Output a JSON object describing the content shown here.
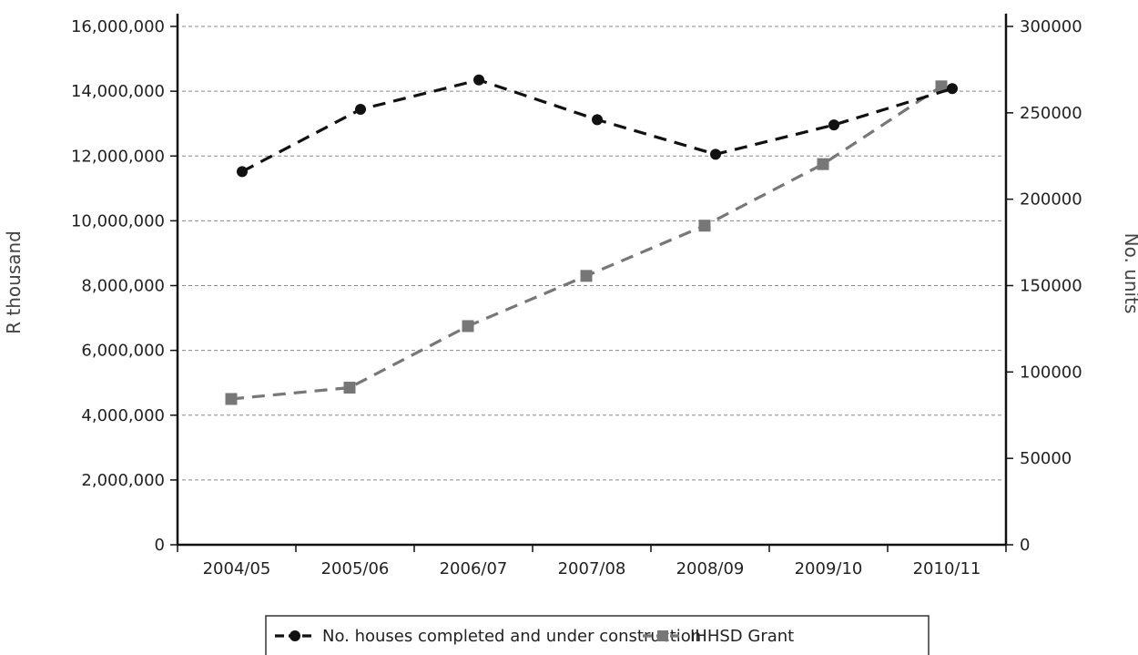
{
  "chart_data": {
    "type": "line",
    "categories": [
      "2004/05",
      "2005/06",
      "2006/07",
      "2007/08",
      "2008/09",
      "2009/10",
      "2010/11"
    ],
    "series": [
      {
        "name": "No. houses completed and under construction",
        "axis": "right",
        "values": [
          216000,
          252000,
          269000,
          246000,
          226000,
          243000,
          264000
        ],
        "color": "#111111",
        "marker": "circle",
        "line_style": "dashed"
      },
      {
        "name": "IHHSD Grant",
        "axis": "left",
        "values": [
          4500000,
          4850000,
          6750000,
          8300000,
          9850000,
          11750000,
          14150000
        ],
        "color": "#777777",
        "marker": "square",
        "line_style": "dashed"
      }
    ],
    "ylabel": "R thousand",
    "ylabel_right": "No. units",
    "ylim": [
      0,
      16000000
    ],
    "ylim_right": [
      0,
      300000
    ],
    "yticks": [
      "0",
      "2,000,000",
      "4,000,000",
      "6,000,000",
      "8,000,000",
      "10,000,000",
      "12,000,000",
      "14,000,000",
      "16,000,000"
    ],
    "yticks_right": [
      "0",
      "50000",
      "100000",
      "150000",
      "200000",
      "250000",
      "300000"
    ],
    "grid": true,
    "legend_position": "bottom"
  }
}
